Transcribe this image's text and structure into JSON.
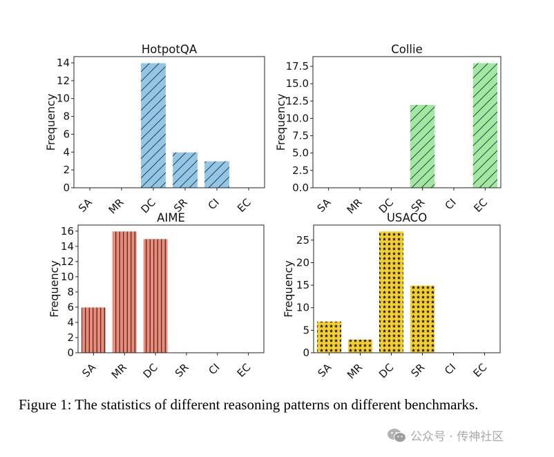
{
  "figure": {
    "caption": "Figure 1: The statistics of different reasoning patterns on different benchmarks.",
    "watermark": "公众号 · 传神社区",
    "watermark_icon": "wechat-icon"
  },
  "chart_data": [
    {
      "type": "bar",
      "title": "HotpotQA",
      "ylabel": "Frequency",
      "xlabel": "",
      "categories": [
        "SA",
        "MR",
        "DC",
        "SR",
        "CI",
        "EC"
      ],
      "values": [
        0,
        0,
        14,
        4,
        3,
        0
      ],
      "ylim": [
        0,
        14.7
      ],
      "yticks": [
        0,
        2,
        4,
        6,
        8,
        10,
        12,
        14
      ],
      "ytick_labels": [
        "0",
        "2",
        "4",
        "6",
        "8",
        "10",
        "12",
        "14"
      ],
      "color": "#93C6E6",
      "hatch": "diagonal",
      "grid": false
    },
    {
      "type": "bar",
      "title": "Collie",
      "ylabel": "Frequency",
      "xlabel": "",
      "categories": [
        "SA",
        "MR",
        "DC",
        "SR",
        "CI",
        "EC"
      ],
      "values": [
        0,
        0,
        0,
        12,
        0,
        18
      ],
      "ylim": [
        0,
        18.9
      ],
      "yticks": [
        0,
        2.5,
        5,
        7.5,
        10,
        12.5,
        15,
        17.5
      ],
      "ytick_labels": [
        "0.0",
        "2.5",
        "5.0",
        "7.5",
        "10.0",
        "12.5",
        "15.0",
        "17.5"
      ],
      "color": "#A3E8A0",
      "hatch": "diagonal",
      "grid": false
    },
    {
      "type": "bar",
      "title": "AIME",
      "ylabel": "Frequency",
      "xlabel": "",
      "categories": [
        "SA",
        "MR",
        "DC",
        "SR",
        "CI",
        "EC"
      ],
      "values": [
        6,
        16,
        15,
        0,
        0,
        0
      ],
      "ylim": [
        0,
        16.8
      ],
      "yticks": [
        0,
        2,
        4,
        6,
        8,
        10,
        12,
        14,
        16
      ],
      "ytick_labels": [
        "0",
        "2",
        "4",
        "6",
        "8",
        "10",
        "12",
        "14",
        "16"
      ],
      "color": "#EE8A78",
      "hatch": "vertical",
      "grid": false
    },
    {
      "type": "bar",
      "title": "USACO",
      "ylabel": "Frequency",
      "xlabel": "",
      "categories": [
        "SA",
        "MR",
        "DC",
        "SR",
        "CI",
        "EC"
      ],
      "values": [
        7,
        3,
        27,
        15,
        0,
        0
      ],
      "ylim": [
        0,
        28.35
      ],
      "yticks": [
        0,
        5,
        10,
        15,
        20,
        25
      ],
      "ytick_labels": [
        "0",
        "5",
        "10",
        "15",
        "20",
        "25"
      ],
      "color": "#F5D02E",
      "hatch": "stars",
      "grid": false
    }
  ]
}
